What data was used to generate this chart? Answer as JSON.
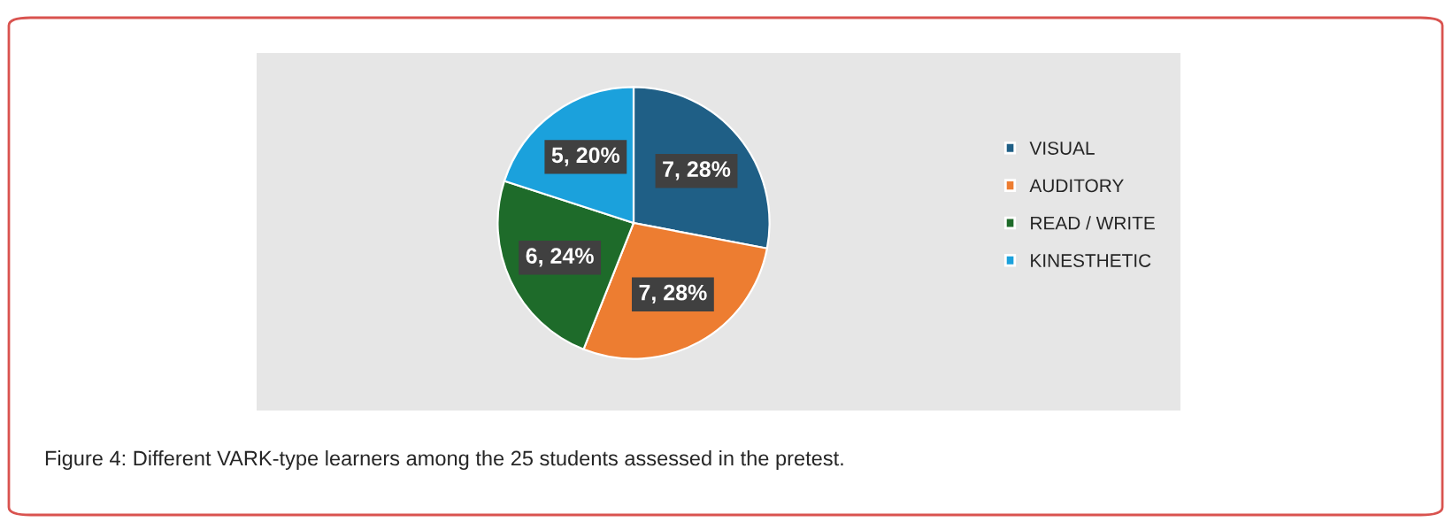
{
  "chart_data": {
    "type": "pie",
    "categories": [
      "VISUAL",
      "AUDITORY",
      "READ / WRITE",
      "KINESTHETIC"
    ],
    "values": [
      7,
      7,
      6,
      5
    ],
    "value_labels": [
      "7, 28%",
      "7, 28%",
      "6, 24%",
      "5, 20%"
    ],
    "colors": [
      "#1f5f86",
      "#ed7d31",
      "#1e6b2a",
      "#1ba1dc"
    ],
    "legend": "right",
    "annotations": [
      "Figure 4: Different VARK-type learners among the 25 students assessed in the pretest."
    ]
  }
}
